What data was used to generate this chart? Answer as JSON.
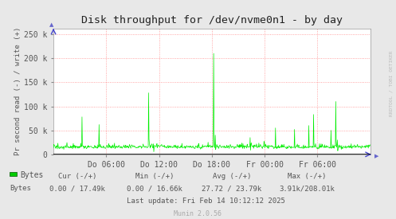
{
  "title": "Disk throughput for /dev/nvme0n1 - by day",
  "ylabel": "Pr second read (-) / write (+)",
  "background_color": "#e8e8e8",
  "plot_background_color": "#ffffff",
  "grid_color": "#ff8080",
  "line_color": "#00ee00",
  "zero_line_color": "#000000",
  "ylim": [
    0,
    262000
  ],
  "yticks": [
    0,
    50000,
    100000,
    150000,
    200000,
    250000
  ],
  "ytick_labels": [
    "0",
    "50 k",
    "100 k",
    "150 k",
    "200 k",
    "250 k"
  ],
  "xtick_labels": [
    "Do 06:00",
    "Do 12:00",
    "Do 18:00",
    "Fr 00:00",
    "Fr 06:00"
  ],
  "xtick_positions": [
    0.1667,
    0.3333,
    0.5,
    0.6667,
    0.8333
  ],
  "title_color": "#222222",
  "tick_color": "#555555",
  "legend_label": "Bytes",
  "legend_color": "#00cc00",
  "cur_label": "Cur (-/+)",
  "min_label": "Min (-/+)",
  "avg_label": "Avg (-/+)",
  "max_label": "Max (-/+)",
  "cur_val": "0.00 / 17.49k",
  "min_val": "0.00 / 16.66k",
  "avg_val": "27.72 / 23.79k",
  "max_val": "3.91k/208.01k",
  "last_update": "Last update: Fri Feb 14 10:12:12 2025",
  "munin_label": "Munin 2.0.56",
  "rrdtool_label": "RRDTOOL / TOBI OETIKER",
  "num_points": 800
}
